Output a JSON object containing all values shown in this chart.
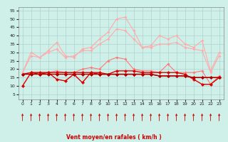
{
  "x": [
    0,
    1,
    2,
    3,
    4,
    5,
    6,
    7,
    8,
    9,
    10,
    11,
    12,
    13,
    14,
    15,
    16,
    17,
    18,
    19,
    20,
    21,
    22,
    23
  ],
  "series": [
    {
      "name": "rafales_max",
      "color": "#ffaaaa",
      "linewidth": 0.8,
      "markersize": 2.0,
      "values": [
        18,
        30,
        27,
        31,
        36,
        28,
        27,
        32,
        33,
        38,
        42,
        50,
        51,
        43,
        33,
        34,
        40,
        38,
        40,
        35,
        33,
        37,
        19,
        30
      ]
    },
    {
      "name": "rafales_mid1",
      "color": "#ffaaaa",
      "linewidth": 0.8,
      "markersize": 2.0,
      "values": [
        18,
        28,
        27,
        30,
        32,
        27,
        28,
        31,
        31,
        35,
        38,
        44,
        43,
        38,
        33,
        33,
        35,
        35,
        36,
        33,
        32,
        31,
        18,
        28
      ]
    },
    {
      "name": "vent_moyen_high",
      "color": "#ff7777",
      "linewidth": 0.8,
      "markersize": 2.0,
      "values": [
        17,
        18,
        18,
        18,
        19,
        18,
        18,
        20,
        21,
        20,
        25,
        27,
        26,
        20,
        19,
        19,
        18,
        23,
        18,
        18,
        18,
        19,
        11,
        16
      ]
    },
    {
      "name": "vent_moyen_mid",
      "color": "#dd0000",
      "linewidth": 1.0,
      "markersize": 2.5,
      "values": [
        10,
        18,
        17,
        18,
        14,
        13,
        17,
        12,
        18,
        17,
        17,
        19,
        19,
        19,
        18,
        18,
        18,
        18,
        18,
        17,
        14,
        11,
        11,
        15
      ]
    },
    {
      "name": "vent_moyen_low",
      "color": "#dd0000",
      "linewidth": 1.0,
      "markersize": 2.5,
      "values": [
        17,
        18,
        18,
        18,
        18,
        18,
        18,
        18,
        18,
        18,
        17,
        17,
        17,
        17,
        17,
        17,
        16,
        16,
        16,
        16,
        15,
        15,
        15,
        15
      ]
    },
    {
      "name": "vent_moyen_flat",
      "color": "#aa0000",
      "linewidth": 1.0,
      "markersize": 2.5,
      "values": [
        17,
        17,
        17,
        17,
        17,
        17,
        17,
        17,
        17,
        17,
        17,
        17,
        17,
        17,
        17,
        17,
        16,
        16,
        16,
        16,
        15,
        15,
        15,
        15
      ]
    }
  ],
  "xlabel": "Vent moyen/en rafales ( km/h )",
  "ylim": [
    2,
    57
  ],
  "yticks": [
    5,
    10,
    15,
    20,
    25,
    30,
    35,
    40,
    45,
    50,
    55
  ],
  "xlim": [
    -0.5,
    23.5
  ],
  "xticks": [
    0,
    1,
    2,
    3,
    4,
    5,
    6,
    7,
    8,
    9,
    10,
    11,
    12,
    13,
    14,
    15,
    16,
    17,
    18,
    19,
    20,
    21,
    22,
    23
  ],
  "bg_color": "#cef0e8",
  "grid_color": "#aacccc",
  "xlabel_color": "#cc0000",
  "arrow_color": "#cc0000"
}
